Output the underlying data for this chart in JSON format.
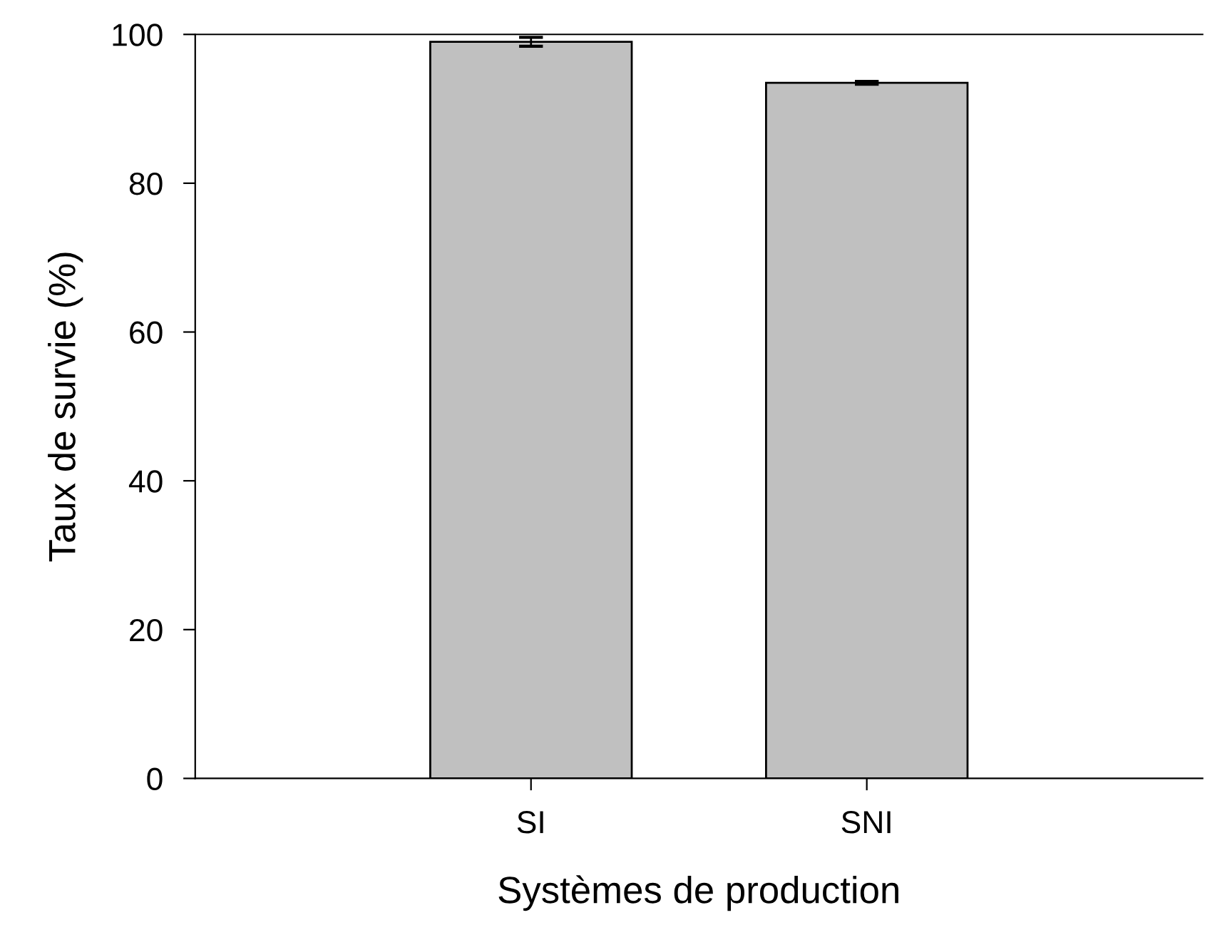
{
  "chart_data": {
    "type": "bar",
    "xlabel": "Systèmes de production",
    "ylabel": "Taux de survie (%)",
    "categories": [
      "SI",
      "SNI"
    ],
    "values": [
      99,
      93.5
    ],
    "errors": [
      0.6,
      0.2
    ],
    "color": "#c0c0c0",
    "ylim": [
      0,
      100
    ],
    "yticks": [
      0,
      20,
      40,
      60,
      80,
      100
    ],
    "grid": false,
    "legend": false
  }
}
